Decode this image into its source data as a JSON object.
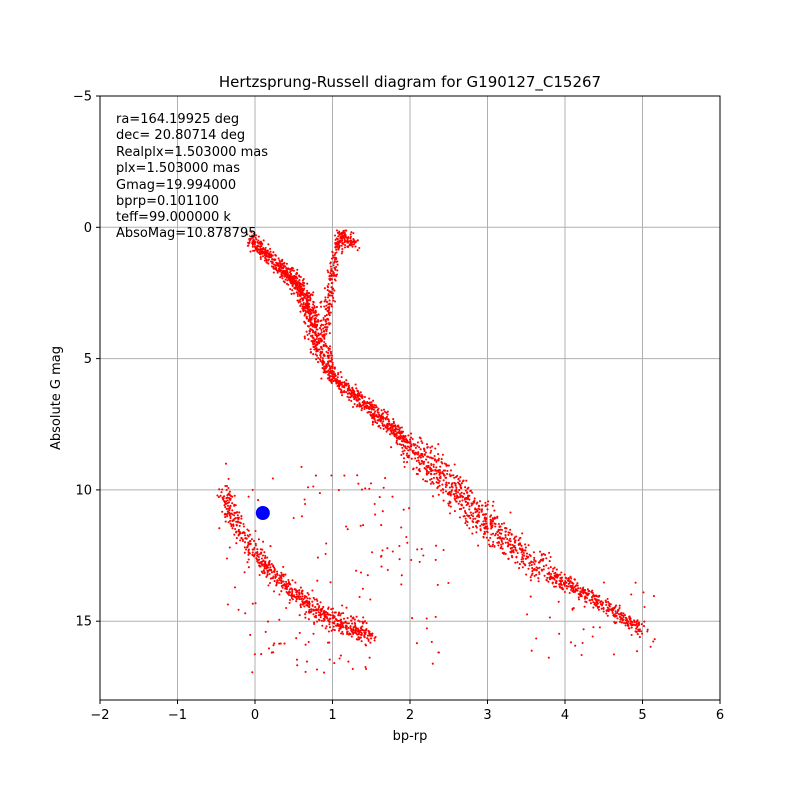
{
  "chart_data": {
    "type": "scatter",
    "title": "Hertzsprung-Russell diagram for G190127_C15267",
    "xlabel": "bp-rp",
    "ylabel": "Absolute G mag",
    "xlim": [
      -2,
      6
    ],
    "ylim": [
      -5,
      18
    ],
    "y_inverted": true,
    "grid": true,
    "xticks": [
      -2,
      -1,
      0,
      1,
      2,
      3,
      4,
      5,
      6
    ],
    "yticks": [
      -5,
      0,
      5,
      10,
      15
    ],
    "annotations": [
      "ra=164.19925 deg",
      "dec= 20.80714 deg",
      "Realplx=1.503000 mas",
      "plx=1.503000 mas",
      "Gmag=19.994000",
      "bprp=0.101100",
      "teff=99.000000 k",
      "AbsoMag=10.878795"
    ],
    "series": [
      {
        "color": "#ff0000",
        "marker": "point",
        "points": [
          [
            -0.05,
            0.4
          ],
          [
            0.1,
            0.9
          ],
          [
            0.25,
            1.3
          ],
          [
            0.4,
            1.7
          ],
          [
            0.5,
            2.0
          ],
          [
            0.6,
            2.4
          ],
          [
            0.7,
            3.0
          ],
          [
            0.75,
            3.6
          ],
          [
            0.8,
            4.3
          ],
          [
            0.9,
            5.0
          ],
          [
            1.0,
            5.7
          ],
          [
            1.2,
            6.2
          ],
          [
            1.4,
            6.7
          ],
          [
            1.6,
            7.2
          ],
          [
            1.8,
            7.7
          ],
          [
            2.0,
            8.3
          ],
          [
            2.2,
            8.9
          ],
          [
            2.4,
            9.5
          ],
          [
            2.6,
            10.1
          ],
          [
            2.8,
            10.7
          ],
          [
            3.0,
            11.3
          ],
          [
            3.2,
            11.9
          ],
          [
            3.5,
            12.6
          ],
          [
            3.8,
            13.2
          ],
          [
            4.1,
            13.7
          ],
          [
            4.4,
            14.2
          ],
          [
            4.7,
            14.8
          ],
          [
            5.0,
            15.4
          ],
          [
            0.9,
            4.0
          ],
          [
            0.95,
            3.0
          ],
          [
            1.0,
            2.0
          ],
          [
            1.05,
            1.0
          ],
          [
            1.1,
            0.3
          ],
          [
            1.2,
            0.5
          ],
          [
            1.3,
            0.6
          ],
          [
            -0.4,
            10.0
          ],
          [
            -0.3,
            11.0
          ],
          [
            -0.1,
            12.0
          ],
          [
            0.1,
            12.8
          ],
          [
            0.3,
            13.4
          ],
          [
            0.5,
            13.9
          ],
          [
            0.7,
            14.4
          ],
          [
            0.9,
            14.8
          ],
          [
            1.1,
            15.1
          ],
          [
            1.3,
            15.3
          ],
          [
            1.5,
            15.5
          ]
        ]
      },
      {
        "color": "#0000ff",
        "marker": "circle",
        "points": [
          [
            0.1011,
            10.878795
          ]
        ]
      }
    ]
  }
}
